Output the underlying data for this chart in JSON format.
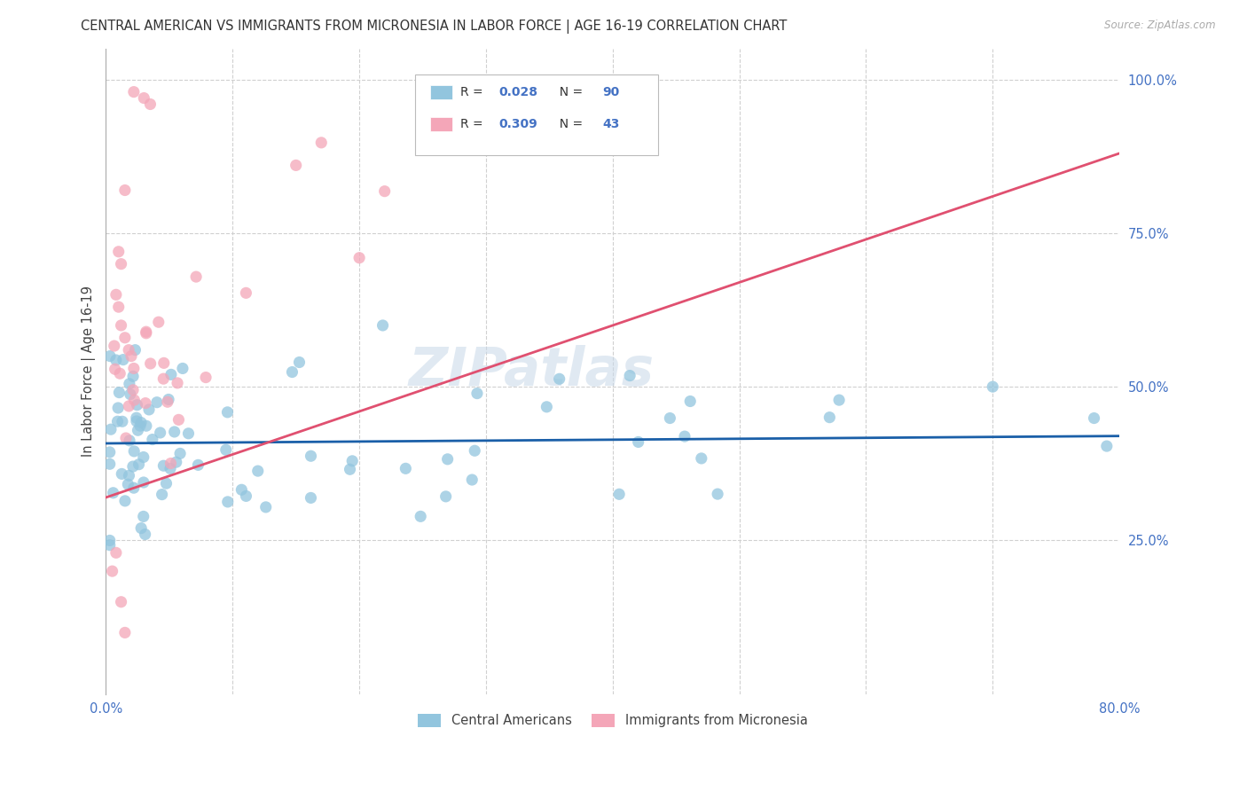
{
  "title": "CENTRAL AMERICAN VS IMMIGRANTS FROM MICRONESIA IN LABOR FORCE | AGE 16-19 CORRELATION CHART",
  "source": "Source: ZipAtlas.com",
  "ylabel": "In Labor Force | Age 16-19",
  "xlim": [
    0.0,
    0.8
  ],
  "ylim": [
    0.0,
    1.05
  ],
  "blue_R": 0.028,
  "blue_N": 90,
  "pink_R": 0.309,
  "pink_N": 43,
  "blue_color": "#92c5de",
  "pink_color": "#f4a6b8",
  "blue_line_color": "#1a5fa8",
  "pink_line_color": "#e05070",
  "legend_blue_label": "Central Americans",
  "legend_pink_label": "Immigrants from Micronesia",
  "watermark": "ZIPatlas",
  "blue_trend": [
    0.0,
    0.8,
    0.408,
    0.42
  ],
  "pink_trend": [
    0.0,
    0.8,
    0.32,
    0.88
  ]
}
